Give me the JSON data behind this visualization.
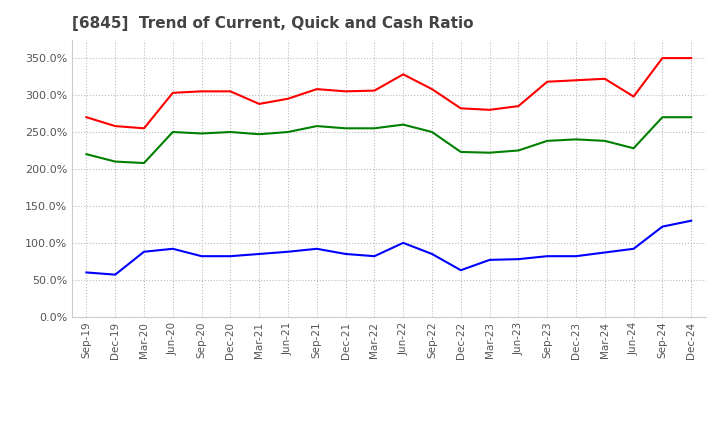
{
  "title": "[6845]  Trend of Current, Quick and Cash Ratio",
  "x_labels": [
    "Sep-19",
    "Dec-19",
    "Mar-20",
    "Jun-20",
    "Sep-20",
    "Dec-20",
    "Mar-21",
    "Jun-21",
    "Sep-21",
    "Dec-21",
    "Mar-22",
    "Jun-22",
    "Sep-22",
    "Dec-22",
    "Mar-23",
    "Jun-23",
    "Sep-23",
    "Dec-23",
    "Mar-24",
    "Jun-24",
    "Sep-24",
    "Dec-24"
  ],
  "current_ratio": [
    2.7,
    2.58,
    2.55,
    3.03,
    3.05,
    3.05,
    2.88,
    2.95,
    3.08,
    3.05,
    3.06,
    3.28,
    3.08,
    2.82,
    2.8,
    2.85,
    3.18,
    3.2,
    3.22,
    2.98,
    3.5,
    3.5
  ],
  "quick_ratio": [
    2.2,
    2.1,
    2.08,
    2.5,
    2.48,
    2.5,
    2.47,
    2.5,
    2.58,
    2.55,
    2.55,
    2.6,
    2.5,
    2.23,
    2.22,
    2.25,
    2.38,
    2.4,
    2.38,
    2.28,
    2.7,
    2.7
  ],
  "cash_ratio": [
    0.6,
    0.57,
    0.88,
    0.92,
    0.82,
    0.82,
    0.85,
    0.88,
    0.92,
    0.85,
    0.82,
    1.0,
    0.85,
    0.63,
    0.77,
    0.78,
    0.82,
    0.82,
    0.87,
    0.92,
    1.22,
    1.3
  ],
  "current_color": "#ff0000",
  "quick_color": "#008000",
  "cash_color": "#0000ff",
  "ylim": [
    0.0,
    3.75
  ],
  "yticks": [
    0.0,
    0.5,
    1.0,
    1.5,
    2.0,
    2.5,
    3.0,
    3.5
  ],
  "background_color": "#ffffff",
  "grid_color": "#bbbbbb"
}
